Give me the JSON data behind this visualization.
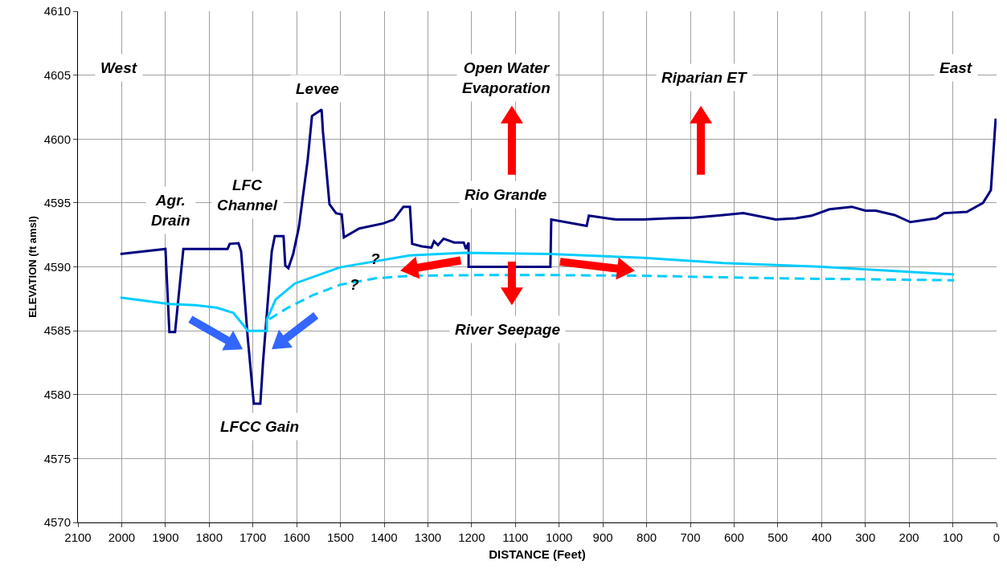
{
  "chart_data": {
    "type": "line",
    "xlabel": "DISTANCE (Feet)",
    "ylabel": "ELEVATION (ft amsl)",
    "xlim": [
      2100,
      0
    ],
    "xticks": [
      2100,
      2000,
      1900,
      1800,
      1700,
      1600,
      1500,
      1400,
      1300,
      1200,
      1100,
      1000,
      900,
      800,
      700,
      600,
      500,
      400,
      300,
      200,
      100,
      0
    ],
    "ylim": [
      4570,
      4610
    ],
    "yticks": [
      4570,
      4575,
      4580,
      4585,
      4590,
      4595,
      4600,
      4605,
      4610
    ],
    "grid": true,
    "marker": "none",
    "series": [
      {
        "color": "#000080",
        "line_style": "solid",
        "x": [
          2003,
          1900,
          1891,
          1878,
          1859,
          1758,
          1753,
          1733,
          1727,
          1712,
          1698,
          1683,
          1677,
          1657,
          1650,
          1630,
          1626,
          1619,
          1608,
          1595,
          1575,
          1565,
          1543,
          1540,
          1525,
          1510,
          1497,
          1492,
          1457,
          1402,
          1378,
          1356,
          1341,
          1336,
          1314,
          1292,
          1286,
          1277,
          1264,
          1240,
          1218,
          1213,
          1207,
          1207,
          1020,
          1018,
          937,
          932,
          869,
          808,
          748,
          693,
          625,
          579,
          505,
          459,
          423,
          382,
          331,
          300,
          276,
          233,
          197,
          138,
          120,
          68,
          31,
          13,
          2
        ],
        "values": [
          4591.0,
          4591.4,
          4584.9,
          4584.9,
          4591.4,
          4591.4,
          4591.8,
          4591.85,
          4591.2,
          4584.5,
          4579.3,
          4579.3,
          4582.5,
          4591.2,
          4592.4,
          4592.4,
          4590.1,
          4589.9,
          4591.0,
          4593.1,
          4598.3,
          4601.8,
          4602.3,
          4600.6,
          4594.9,
          4594.2,
          4594.1,
          4592.3,
          4593.0,
          4593.4,
          4593.7,
          4594.7,
          4594.7,
          4591.8,
          4591.6,
          4591.5,
          4592.0,
          4591.7,
          4592.2,
          4591.9,
          4591.9,
          4591.4,
          4591.9,
          4590.0,
          4590.0,
          4593.7,
          4593.2,
          4594.0,
          4593.7,
          4593.7,
          4593.8,
          4593.85,
          4594.05,
          4594.2,
          4593.7,
          4593.8,
          4594.0,
          4594.5,
          4594.7,
          4594.4,
          4594.4,
          4594.05,
          4593.5,
          4593.8,
          4594.2,
          4594.3,
          4595.0,
          4596.0,
          4601.6
        ]
      },
      {
        "color": "#00ccff",
        "line_style": "solid",
        "x": [
          2003,
          1892,
          1832,
          1782,
          1745,
          1721,
          1712,
          1668,
          1668,
          1648,
          1604,
          1501,
          1341,
          1218,
          1020,
          808,
          625,
          399,
          97
        ],
        "values": [
          4587.6,
          4587.1,
          4587.0,
          4586.8,
          4586.4,
          4585.4,
          4585.0,
          4585.0,
          4585.9,
          4587.45,
          4588.7,
          4589.96,
          4590.9,
          4591.1,
          4591.0,
          4590.7,
          4590.3,
          4590.0,
          4589.4
        ]
      },
      {
        "color": "#00ccff",
        "line_style": "dashed",
        "x": [
          1663,
          1620,
          1562,
          1500,
          1420,
          1340,
          1200,
          1000,
          800,
          500,
          97
        ],
        "values": [
          4585.9,
          4586.8,
          4587.8,
          4588.6,
          4589.1,
          4589.3,
          4589.35,
          4589.35,
          4589.3,
          4589.1,
          4588.95
        ]
      }
    ],
    "annotations": [
      "West",
      "Agr.\nDrain",
      "LFC\nChannel",
      "Levee",
      "Open Water\nEvaporation",
      "Rio Grande",
      "Riparian ET",
      "East",
      "River Seepage",
      "LFCC Gain",
      "?",
      "?"
    ]
  }
}
